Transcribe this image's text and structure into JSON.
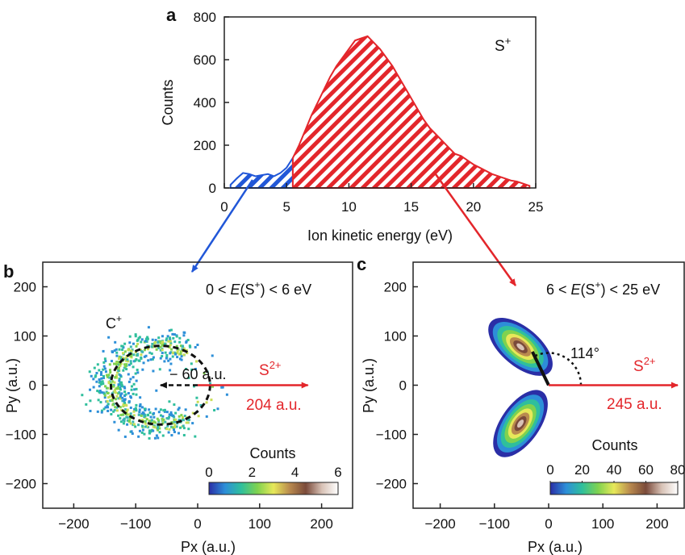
{
  "chart_data": [
    {
      "panel": "a",
      "type": "area",
      "xlabel": "Ion kinetic energy (eV)",
      "ylabel": "Counts",
      "xlim": [
        0,
        25
      ],
      "ylim": [
        0,
        800
      ],
      "xticks": [
        "0",
        "5",
        "10",
        "15",
        "20",
        "25"
      ],
      "yticks": [
        "0",
        "200",
        "400",
        "600",
        "800"
      ],
      "annotation": "S",
      "annotation_sup": "+",
      "colors": {
        "low": "#2157d8",
        "high": "#e3262b"
      },
      "low_region": {
        "xmin": 0,
        "xmax": 5.5
      },
      "high_region": {
        "xmin": 5.5,
        "xmax": 24.5
      },
      "x": [
        0.5,
        1,
        1.5,
        2,
        2.5,
        3,
        3.5,
        4,
        4.5,
        5,
        5.5,
        6,
        6.5,
        7,
        7.5,
        8,
        8.5,
        9,
        9.5,
        10,
        10.5,
        11,
        11.5,
        12,
        12.5,
        13,
        13.5,
        14,
        14.5,
        15,
        15.5,
        16,
        16.5,
        17,
        17.5,
        18,
        18.5,
        19,
        19.5,
        20,
        20.5,
        21,
        21.5,
        22,
        22.5,
        23,
        23.5,
        24,
        24.5
      ],
      "y": [
        15,
        45,
        70,
        65,
        55,
        60,
        65,
        55,
        70,
        95,
        140,
        200,
        270,
        340,
        400,
        460,
        520,
        570,
        610,
        650,
        690,
        700,
        710,
        680,
        650,
        610,
        570,
        520,
        470,
        420,
        370,
        320,
        280,
        250,
        220,
        190,
        160,
        150,
        130,
        110,
        95,
        80,
        65,
        55,
        45,
        35,
        30,
        20,
        10
      ]
    },
    {
      "panel": "b",
      "type": "heatmap",
      "xlabel": "Px (a.u.)",
      "ylabel": "Py (a.u.)",
      "xlim": [
        -250,
        250
      ],
      "ylim": [
        -250,
        250
      ],
      "xticks": [
        "−200",
        "−100",
        "0",
        "100",
        "200"
      ],
      "yticks": [
        "−200",
        "−100",
        "0",
        "100",
        "200"
      ],
      "condition": {
        "pre": "0 < ",
        "italic": "E",
        "mid": "(S",
        "sup": "+",
        "post": ") < 6 eV"
      },
      "ion_label": {
        "text": "C",
        "sup": "+"
      },
      "momentum_label": "− 60 a.u.",
      "s2_label": {
        "text": "S",
        "sup": "2+",
        "value": "204 a.u."
      },
      "circle": {
        "center": [
          -60,
          0
        ],
        "radius": 80
      },
      "arrows": {
        "c_ion": [
          -60,
          0
        ],
        "s2": [
          204,
          0
        ]
      },
      "colorbar": {
        "title": "Counts",
        "ticks": [
          "0",
          "2",
          "4",
          "6"
        ],
        "range": [
          0,
          6
        ],
        "colors": [
          "#2a2ea6",
          "#2d8fd8",
          "#2fbf9c",
          "#7fd24f",
          "#e7e85a",
          "#b98a4e",
          "#7a4a3a",
          "#d8c2b6",
          "#ffffff"
        ]
      }
    },
    {
      "panel": "c",
      "type": "heatmap",
      "xlabel": "Px (a.u.)",
      "ylabel": "Py (a.u.)",
      "xlim": [
        -250,
        250
      ],
      "ylim": [
        -250,
        250
      ],
      "xticks": [
        "−200",
        "−100",
        "0",
        "100",
        "200"
      ],
      "yticks": [
        "−200",
        "−100",
        "0",
        "100",
        "200"
      ],
      "condition": {
        "pre": "6 < ",
        "italic": "E",
        "mid": "(S",
        "sup": "+",
        "post": ") < 25 eV"
      },
      "angle_label": "114°",
      "s2_label": {
        "text": "S",
        "sup": "2+",
        "value": "245 a.u."
      },
      "arrows": {
        "s2": [
          245,
          0
        ],
        "ion": [
          -30,
          68
        ]
      },
      "colorbar": {
        "title": "Counts",
        "ticks": [
          "0",
          "20",
          "40",
          "60",
          "80"
        ],
        "range": [
          0,
          80
        ],
        "colors": [
          "#2a2ea6",
          "#2d8fd8",
          "#2fbf9c",
          "#7fd24f",
          "#e7e85a",
          "#b98a4e",
          "#7a4a3a",
          "#d8c2b6",
          "#ffffff"
        ]
      }
    }
  ],
  "panel_labels": {
    "a": "a",
    "b": "b",
    "c": "c"
  }
}
